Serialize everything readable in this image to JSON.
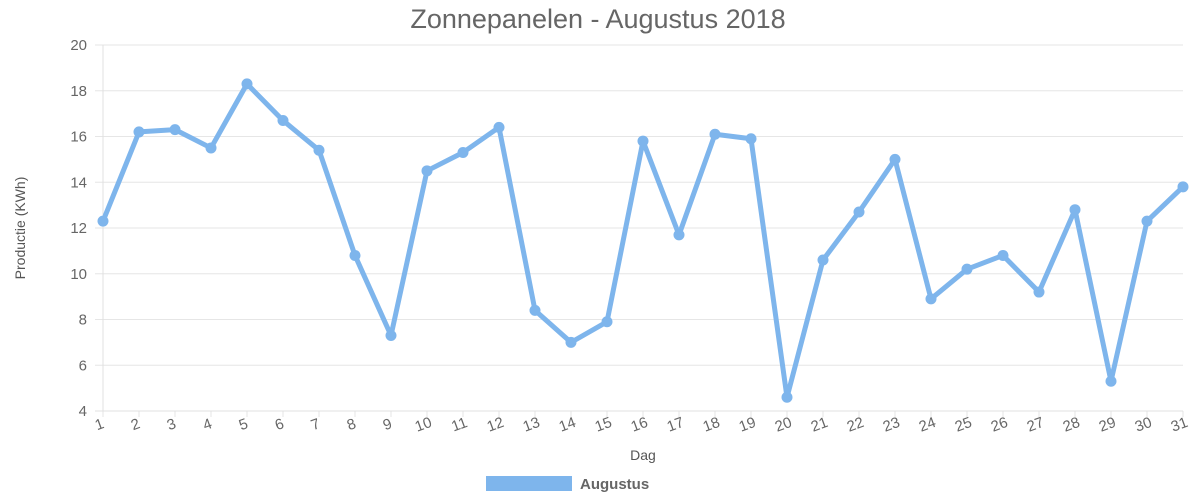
{
  "chart_data": {
    "type": "line",
    "title": "Zonnepanelen - Augustus 2018",
    "xlabel": "Dag",
    "ylabel": "Productie (KWh)",
    "ylim": [
      4,
      20
    ],
    "yticks": [
      4,
      6,
      8,
      10,
      12,
      14,
      16,
      18,
      20
    ],
    "grid": true,
    "legend_position": "bottom",
    "categories": [
      "1",
      "2",
      "3",
      "4",
      "5",
      "6",
      "7",
      "8",
      "9",
      "10",
      "11",
      "12",
      "13",
      "14",
      "15",
      "16",
      "17",
      "18",
      "19",
      "20",
      "21",
      "22",
      "23",
      "24",
      "25",
      "26",
      "27",
      "28",
      "29",
      "30",
      "31"
    ],
    "series": [
      {
        "name": "Augustus",
        "color": "#7eb5ec",
        "values": [
          12.3,
          16.2,
          16.3,
          15.5,
          18.3,
          16.7,
          15.4,
          10.8,
          7.3,
          14.5,
          15.3,
          16.4,
          8.4,
          7.0,
          7.9,
          15.8,
          11.7,
          16.1,
          15.9,
          4.6,
          10.6,
          12.7,
          15.0,
          8.9,
          10.2,
          10.8,
          9.2,
          12.8,
          5.3,
          12.3,
          13.8
        ]
      }
    ]
  }
}
